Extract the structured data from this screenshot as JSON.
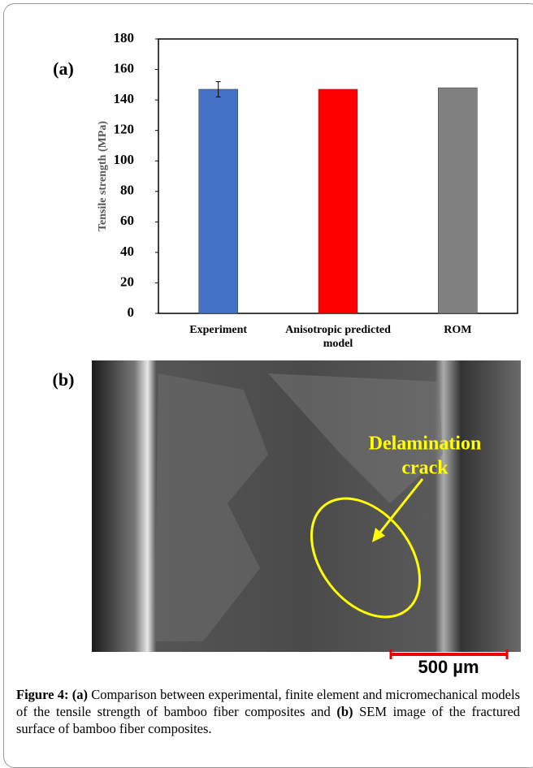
{
  "chart_data": {
    "type": "bar",
    "panel_label": "(a)",
    "y_label": "Tensile strength (MPa)",
    "categories": [
      "Experiment",
      "Anisotropic predicted model",
      "ROM"
    ],
    "values": [
      147,
      147,
      148
    ],
    "errors": [
      5,
      null,
      null
    ],
    "colors": [
      "#4472c4",
      "#ff0000",
      "#808080"
    ],
    "ylim": [
      0,
      180
    ],
    "yticks": [
      0,
      20,
      40,
      60,
      80,
      100,
      120,
      140,
      160,
      180
    ],
    "grid": false
  },
  "image": {
    "panel_label": "(b)",
    "annotation": [
      "Delamination",
      "crack"
    ],
    "scale_bar": "500 µm"
  },
  "caption": {
    "label": "Figure 4:",
    "a_label": "(a)",
    "a_text": "Comparison between experimental, finite element and micromechanical models of the tensile strength of bamboo fiber composites and",
    "b_label": "(b)",
    "b_text": "SEM image of the fractured surface of bamboo fiber composites."
  }
}
